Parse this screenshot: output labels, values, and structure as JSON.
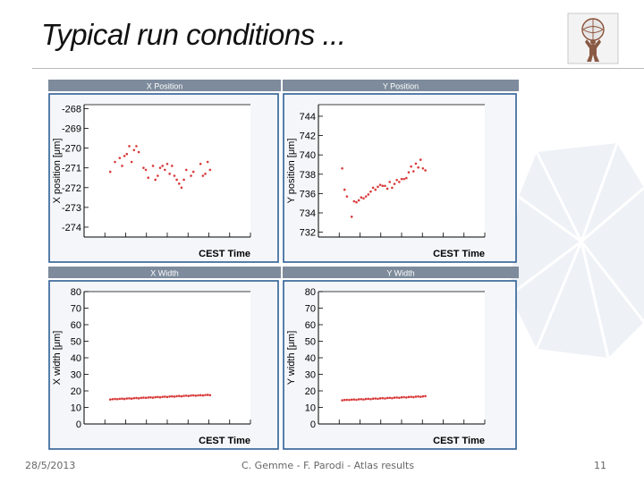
{
  "slide": {
    "title": "Typical run conditions ...",
    "footer": {
      "date": "28/5/2013",
      "credit": "C. Gemme - F. Parodi - Atlas results",
      "page": "11"
    },
    "colors": {
      "marker": "#d93a3a",
      "header_bg": "#7d8b9c",
      "frame": "#2f5f95",
      "plot_bg": "#ffffff"
    }
  },
  "chart_data": [
    {
      "type": "scatter",
      "title": "X Position",
      "xlabel": "CEST Time",
      "ylabel": "X position [μm]",
      "yticks": [
        "-268",
        "-269",
        "-270",
        "-271",
        "-272",
        "-273",
        "-274"
      ],
      "ylim": [
        -274.5,
        -267.8
      ],
      "xlim": [
        0,
        7
      ],
      "xtick_count": 8,
      "series": [
        {
          "x": [
            1.1,
            1.3,
            1.5,
            1.6,
            1.7,
            1.8,
            1.9,
            2.0,
            2.1,
            2.2,
            2.3,
            2.5,
            2.6,
            2.7,
            2.9,
            3.0,
            3.1,
            3.2,
            3.3,
            3.4,
            3.5,
            3.6,
            3.7,
            3.8,
            3.9,
            4.0,
            4.1,
            4.2,
            4.3,
            4.5,
            4.6,
            4.9,
            5.0,
            5.1,
            5.2,
            5.3
          ],
          "y": [
            -271.2,
            -270.7,
            -270.5,
            -270.9,
            -270.4,
            -270.3,
            -269.9,
            -270.7,
            -270.1,
            -269.9,
            -270.2,
            -271.0,
            -271.1,
            -271.5,
            -270.9,
            -271.6,
            -271.4,
            -271.0,
            -270.9,
            -271.1,
            -270.8,
            -271.3,
            -270.9,
            -271.4,
            -271.6,
            -271.8,
            -272.0,
            -271.6,
            -271.1,
            -271.4,
            -271.2,
            -270.8,
            -271.4,
            -271.3,
            -270.7,
            -271.1
          ]
        }
      ]
    },
    {
      "type": "scatter",
      "title": "Y Position",
      "xlabel": "CEST Time",
      "ylabel": "Y position [μm]",
      "yticks": [
        "744",
        "742",
        "740",
        "738",
        "736",
        "734",
        "732"
      ],
      "ylim": [
        731.5,
        745.2
      ],
      "xlim": [
        0,
        7
      ],
      "xtick_count": 8,
      "series": [
        {
          "x": [
            1.0,
            1.1,
            1.2,
            1.4,
            1.5,
            1.6,
            1.7,
            1.8,
            1.9,
            2.0,
            2.1,
            2.2,
            2.3,
            2.4,
            2.5,
            2.6,
            2.7,
            2.8,
            2.9,
            3.0,
            3.1,
            3.2,
            3.3,
            3.4,
            3.5,
            3.6,
            3.7,
            3.8,
            3.9,
            4.0,
            4.1,
            4.2,
            4.3,
            4.4,
            4.5
          ],
          "y": [
            738.6,
            736.4,
            735.7,
            733.6,
            735.2,
            735.1,
            735.3,
            735.6,
            735.5,
            735.7,
            735.9,
            736.2,
            736.6,
            736.4,
            736.7,
            736.9,
            736.8,
            736.8,
            736.5,
            737.2,
            736.6,
            737.0,
            737.4,
            737.2,
            737.5,
            737.5,
            737.6,
            738.2,
            738.8,
            738.3,
            739.1,
            738.7,
            739.5,
            738.6,
            738.4
          ]
        }
      ]
    },
    {
      "type": "scatter",
      "title": "X Width",
      "xlabel": "CEST Time",
      "ylabel": "X width [μm]",
      "yticks": [
        "80",
        "70",
        "60",
        "50",
        "40",
        "30",
        "20",
        "10",
        "0"
      ],
      "ylim": [
        0,
        80
      ],
      "xlim": [
        0,
        7
      ],
      "xtick_count": 8,
      "series": [
        {
          "x": [
            1.1,
            1.2,
            1.3,
            1.4,
            1.5,
            1.6,
            1.7,
            1.8,
            1.9,
            2.0,
            2.1,
            2.2,
            2.3,
            2.4,
            2.5,
            2.6,
            2.7,
            2.8,
            2.9,
            3.0,
            3.1,
            3.2,
            3.3,
            3.4,
            3.5,
            3.6,
            3.7,
            3.8,
            3.9,
            4.0,
            4.1,
            4.2,
            4.3,
            4.4,
            4.5,
            4.6,
            4.7,
            4.8,
            4.9,
            5.0,
            5.1,
            5.2,
            5.3
          ],
          "y": [
            14.8,
            15.0,
            15.1,
            15.0,
            15.2,
            15.3,
            15.1,
            15.4,
            15.5,
            15.3,
            15.6,
            15.7,
            15.5,
            15.8,
            15.9,
            15.8,
            16.0,
            16.1,
            15.9,
            16.2,
            16.3,
            16.1,
            16.4,
            16.5,
            16.3,
            16.6,
            16.7,
            16.5,
            16.8,
            16.9,
            16.7,
            17.0,
            17.1,
            16.9,
            17.2,
            17.3,
            17.1,
            17.3,
            17.4,
            17.2,
            17.5,
            17.6,
            17.4
          ]
        }
      ]
    },
    {
      "type": "scatter",
      "title": "Y Width",
      "xlabel": "CEST Time",
      "ylabel": "Y width [μm]",
      "yticks": [
        "80",
        "70",
        "60",
        "50",
        "40",
        "30",
        "20",
        "10",
        "0"
      ],
      "ylim": [
        0,
        80
      ],
      "xlim": [
        0,
        7
      ],
      "xtick_count": 8,
      "series": [
        {
          "x": [
            1.0,
            1.1,
            1.2,
            1.3,
            1.4,
            1.5,
            1.6,
            1.7,
            1.8,
            1.9,
            2.0,
            2.1,
            2.2,
            2.3,
            2.4,
            2.5,
            2.6,
            2.7,
            2.8,
            2.9,
            3.0,
            3.1,
            3.2,
            3.3,
            3.4,
            3.5,
            3.6,
            3.7,
            3.8,
            3.9,
            4.0,
            4.1,
            4.2,
            4.3,
            4.4,
            4.5
          ],
          "y": [
            14.3,
            14.5,
            14.6,
            14.5,
            14.7,
            14.8,
            14.6,
            14.9,
            15.0,
            14.8,
            15.1,
            15.2,
            15.0,
            15.3,
            15.4,
            15.2,
            15.5,
            15.6,
            15.4,
            15.7,
            15.8,
            15.6,
            15.9,
            16.0,
            15.8,
            16.1,
            16.2,
            16.0,
            16.3,
            16.4,
            16.2,
            16.5,
            16.6,
            16.4,
            16.7,
            16.8
          ]
        }
      ]
    }
  ]
}
